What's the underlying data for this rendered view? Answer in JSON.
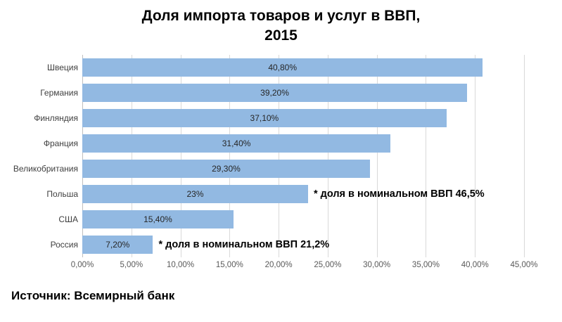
{
  "title": {
    "line1": "Доля импорта товаров и услуг в ВВП,",
    "line2": "2015"
  },
  "source": "Источник: Всемирный банк",
  "colors": {
    "bar": "#92b9e2",
    "gridline": "#d9d9d9",
    "axis_line": "#bfbfbf"
  },
  "chart_data": {
    "type": "bar",
    "orientation": "horizontal",
    "title": "Доля импорта товаров и услуг в ВВП, 2015",
    "categories": [
      "Швеция",
      "Германия",
      "Финляндия",
      "Франция",
      "Великобритания",
      "Польша",
      "США",
      "Россия"
    ],
    "values": [
      40.8,
      39.2,
      37.1,
      31.4,
      29.3,
      23,
      15.4,
      7.2
    ],
    "value_labels": [
      "40,80%",
      "39,20%",
      "37,10%",
      "31,40%",
      "29,30%",
      "23%",
      "15,40%",
      "7,20%"
    ],
    "annotations": [
      {
        "category": "Польша",
        "text": "* доля в номинальном ВВП 46,5%"
      },
      {
        "category": "Россия",
        "text": "* доля в номинальном ВВП 21,2%"
      }
    ],
    "x_ticks": [
      "0,00%",
      "5,00%",
      "10,00%",
      "15,00%",
      "20,00%",
      "25,00%",
      "30,00%",
      "35,00%",
      "40,00%",
      "45,00%"
    ],
    "xlim": [
      0,
      45
    ],
    "grid": true,
    "legend": "none"
  }
}
